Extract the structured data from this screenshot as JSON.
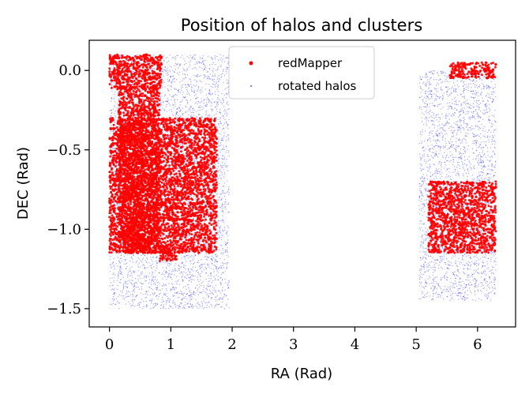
{
  "chart_data": {
    "type": "scatter",
    "title": "Position of halos and clusters",
    "xlabel": "RA (Rad)",
    "ylabel": "DEC (Rad)",
    "xlim": [
      -0.33,
      6.62
    ],
    "ylim": [
      -1.615,
      0.19
    ],
    "xticks": [
      0,
      1,
      2,
      3,
      4,
      5,
      6
    ],
    "xtick_labels": [
      "0",
      "1",
      "2",
      "3",
      "4",
      "5",
      "6"
    ],
    "yticks": [
      0.0,
      -0.5,
      -1.0,
      -1.5
    ],
    "ytick_labels": [
      "0.0",
      "−0.5",
      "−1.0",
      "−1.5"
    ],
    "grid": false,
    "legend_position": "top-center",
    "series": [
      {
        "name": "redMapper",
        "color": "#ff0000",
        "marker": "dot",
        "regions": [
          {
            "ra": [
              0.0,
              0.85
            ],
            "dec": [
              -0.12,
              0.1
            ]
          },
          {
            "ra": [
              0.15,
              0.82
            ],
            "dec": [
              -1.15,
              -0.1
            ]
          },
          {
            "ra": [
              0.0,
              1.75
            ],
            "dec": [
              -1.15,
              -0.3
            ]
          },
          {
            "ra": [
              0.82,
              1.1
            ],
            "dec": [
              -1.2,
              -1.1
            ]
          },
          {
            "ra": [
              5.55,
              6.3
            ],
            "dec": [
              -0.05,
              0.05
            ]
          },
          {
            "ra": [
              5.2,
              6.3
            ],
            "dec": [
              -1.15,
              -0.7
            ]
          }
        ]
      },
      {
        "name": "rotated halos",
        "color": "#0000ff",
        "marker": "dot",
        "regions": [
          {
            "ra": [
              0.0,
              1.95
            ],
            "dec": [
              -1.5,
              0.1
            ]
          },
          {
            "ra": [
              5.05,
              6.3
            ],
            "dec": [
              -1.45,
              0.0
            ]
          }
        ]
      }
    ]
  }
}
